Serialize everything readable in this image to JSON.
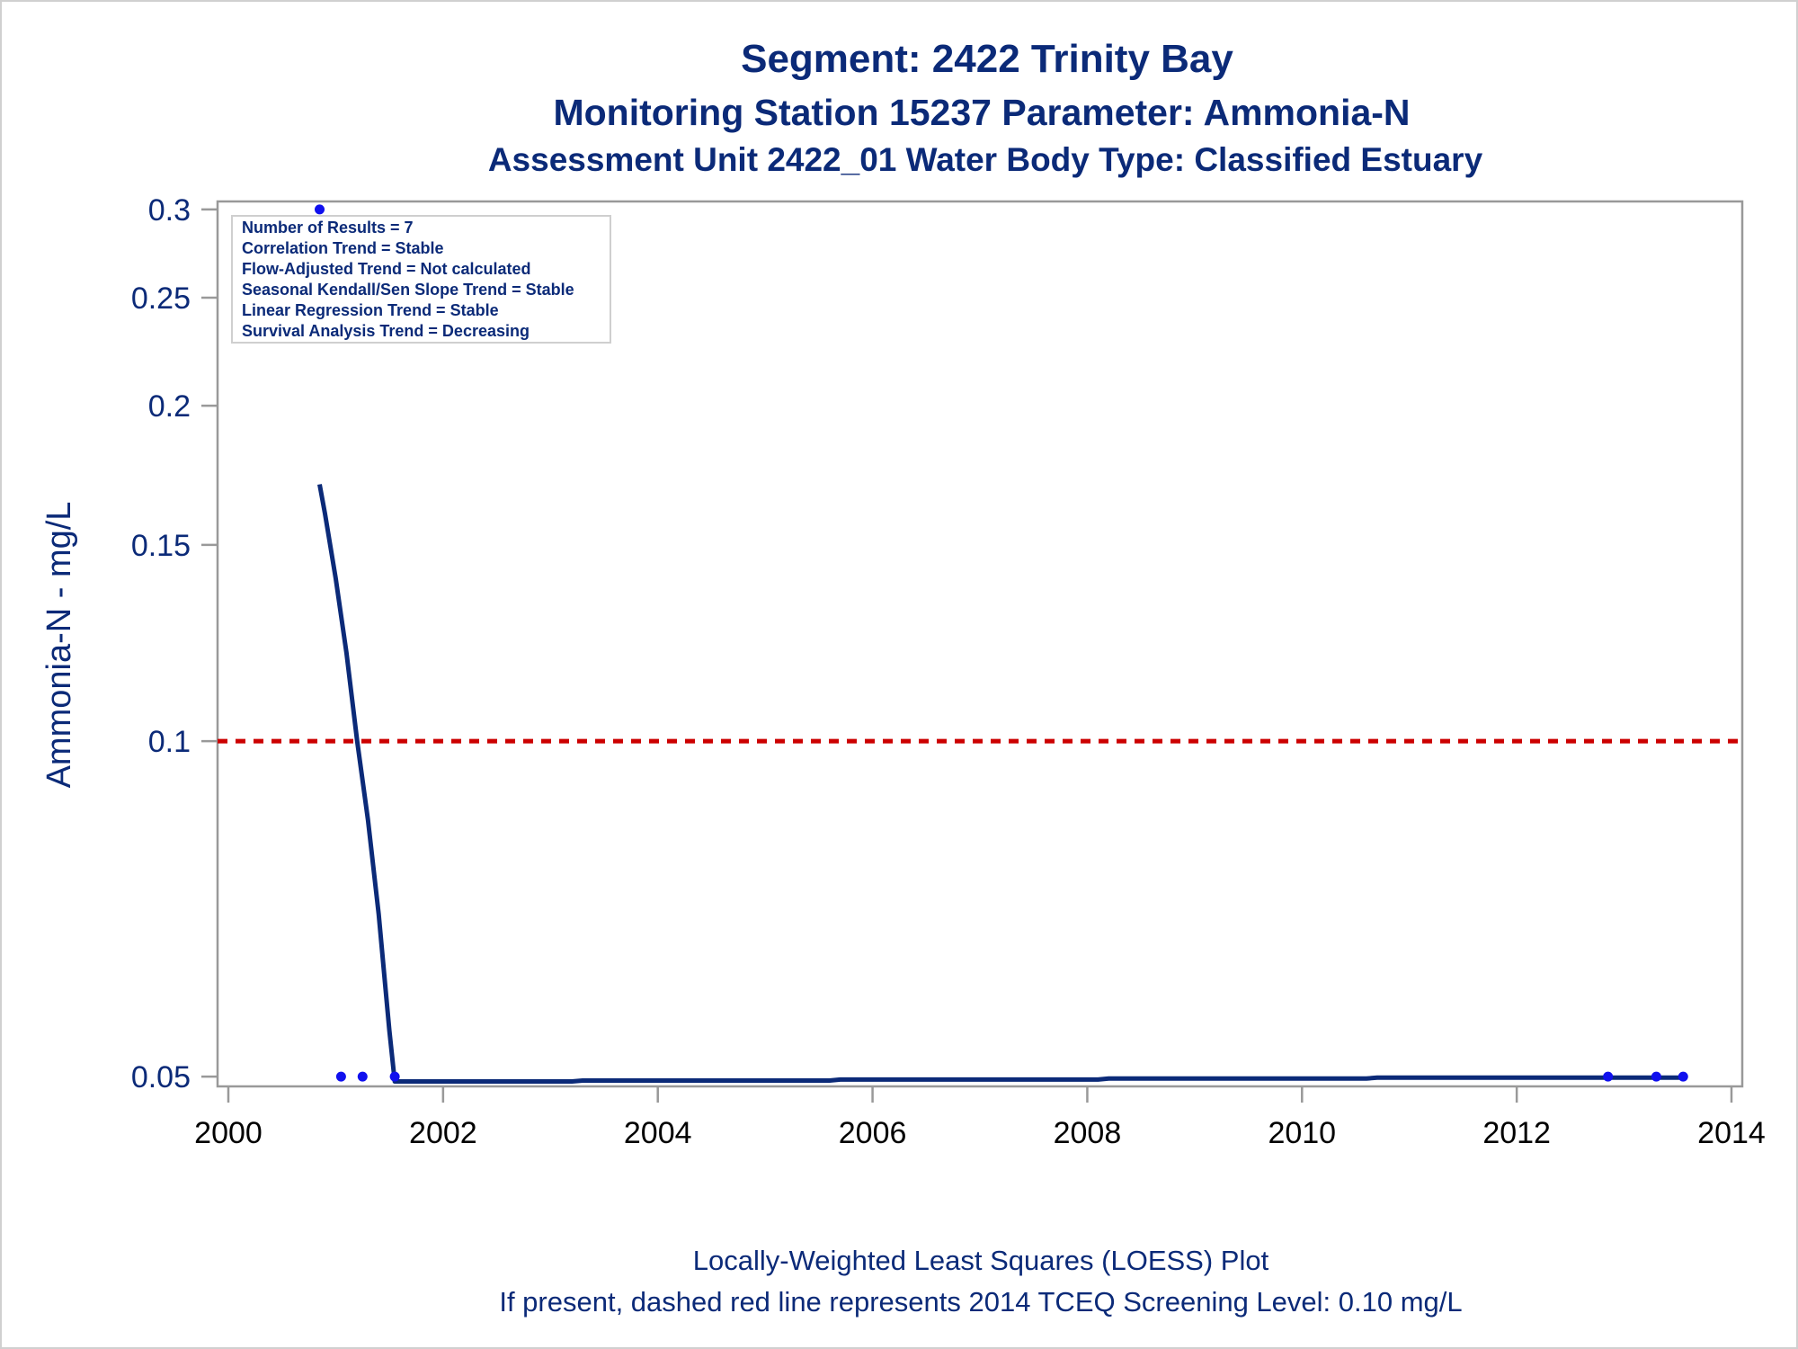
{
  "titles": [
    "Segment: 2422  Trinity Bay",
    "Monitoring Station 15237 Parameter: Ammonia-N",
    "Assessment Unit 2422_01   Water Body Type: Classified Estuary"
  ],
  "footnotes": [
    "Locally-Weighted Least Squares (LOESS) Plot",
    "If present, dashed red line represents 2014 TCEQ Screening Level: 0.10 mg/L"
  ],
  "inset_lines": [
    "Number of Results = 7",
    "Correlation Trend = Stable",
    "Flow-Adjusted Trend = Not calculated",
    "Seasonal Kendall/Sen Slope Trend = Stable",
    "Linear Regression Trend = Stable",
    "Survival Analysis Trend = Decreasing"
  ],
  "colors": {
    "text": "#0b2a78",
    "loess_line": "#0b2a78",
    "points": "#1010ee",
    "screening_line": "#cc0000",
    "axis": "#999999"
  },
  "chart_data": {
    "type": "line",
    "title": "Segment: 2422  Trinity Bay",
    "xlabel": "",
    "ylabel": "Ammonia-N - mg/L",
    "y_scale": "log",
    "xlim": [
      2000,
      2014
    ],
    "ylim": [
      0.049,
      0.305
    ],
    "x_ticks": [
      2000,
      2002,
      2004,
      2006,
      2008,
      2010,
      2012,
      2014
    ],
    "y_ticks": [
      0.05,
      0.1,
      0.15,
      0.2,
      0.25,
      0.3
    ],
    "y_tick_labels": [
      "0.05",
      "0.1",
      "0.15",
      "0.2",
      "0.25",
      "0.3"
    ],
    "grid": false,
    "legend": "top-left",
    "screening_level": 0.1,
    "series": [
      {
        "kind": "points",
        "x": [
          2000.85,
          2001.05,
          2001.25,
          2001.55,
          2012.85,
          2013.3,
          2013.55
        ],
        "y": [
          0.3,
          0.05,
          0.05,
          0.05,
          0.05,
          0.05,
          0.05
        ]
      },
      {
        "kind": "line",
        "x": [
          2000.85,
          2000.9,
          2001.0,
          2001.1,
          2001.2,
          2001.3,
          2001.4,
          2001.5,
          2001.55,
          2002.0,
          2003.2,
          2003.3,
          2005.6,
          2005.7,
          2008.1,
          2008.2,
          2010.6,
          2010.7,
          2013.55
        ],
        "y": [
          0.17,
          0.16,
          0.14,
          0.12,
          0.1,
          0.085,
          0.07,
          0.055,
          0.0495,
          0.0495,
          0.0495,
          0.0496,
          0.0496,
          0.0497,
          0.0497,
          0.0498,
          0.0498,
          0.0499,
          0.0499
        ]
      }
    ]
  }
}
